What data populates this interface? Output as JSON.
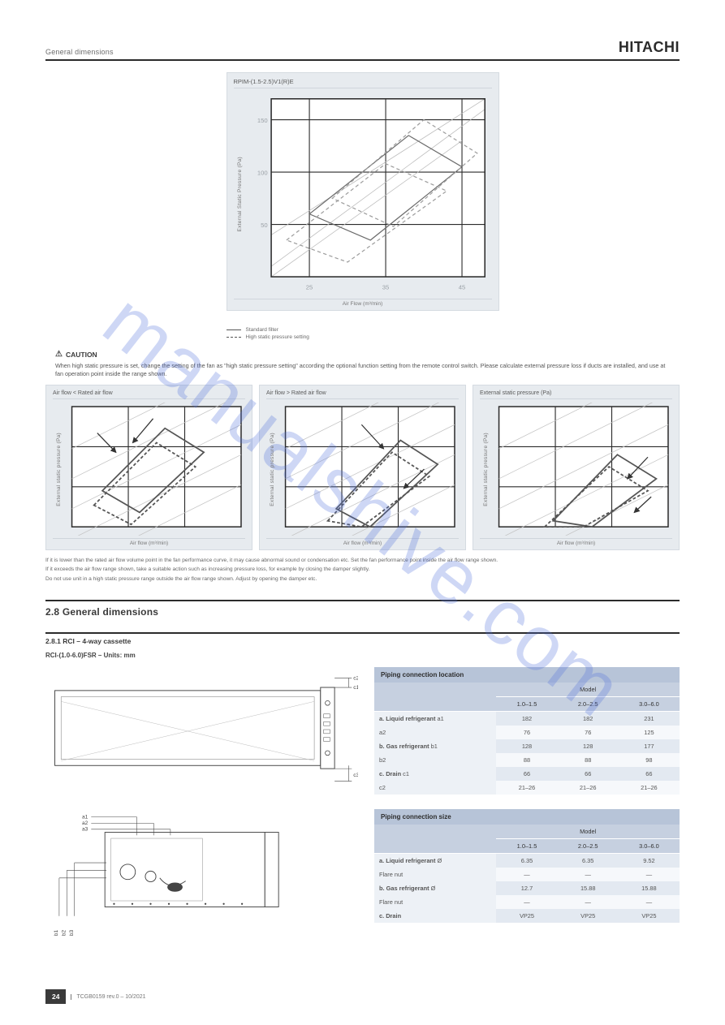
{
  "header": {
    "section_label": "General dimensions",
    "brand": "HITACHI"
  },
  "main_chart": {
    "title": "RPIM-(1.5-2.5)V1(R)E",
    "ylabel": "External Static Pressure (Pa)",
    "xlabel": "Air Flow (m³/min)",
    "x_ticks": [
      "25",
      "35",
      "45"
    ],
    "y_ticks": [
      "50",
      "100",
      "150"
    ],
    "xlim": [
      20,
      48
    ],
    "ylim": [
      0,
      170
    ],
    "styling": {
      "bg": "#e7ebef",
      "plot_bg": "#ffffff",
      "grid": "#2b2b2b",
      "line_solid": "#6a6a6a",
      "line_dashed": "#9c9c9c",
      "tick_fontsize": 7,
      "tick_color": "#9aa0a6",
      "polygons": [
        {
          "pts": [
            [
              25,
              60
            ],
            [
              38,
              135
            ],
            [
              45,
              105
            ],
            [
              33,
              35
            ]
          ],
          "stroke": "#6a6a6a",
          "dash": false
        },
        {
          "pts": [
            [
              22,
              35
            ],
            [
              35,
              108
            ],
            [
              43,
              82
            ],
            [
              30,
              14
            ]
          ],
          "stroke": "#9c9c9c",
          "dash": true
        },
        {
          "pts": [
            [
              28,
              75
            ],
            [
              40,
              150
            ],
            [
              47,
              118
            ],
            [
              36,
              48
            ]
          ],
          "stroke": "#9c9c9c",
          "dash": true
        }
      ],
      "diag_lines": [
        {
          "p1": [
            20,
            10
          ],
          "p2": [
            48,
            160
          ],
          "stroke": "#bcbcbc"
        },
        {
          "p1": [
            20,
            40
          ],
          "p2": [
            48,
            170
          ],
          "stroke": "#bcbcbc"
        },
        {
          "p1": [
            20,
            0
          ],
          "p2": [
            45,
            130
          ],
          "stroke": "#bcbcbc"
        }
      ]
    },
    "legend": [
      {
        "swatch": "solid",
        "label": "Standard filter"
      },
      {
        "swatch": "dashed",
        "label": "High static pressure setting"
      }
    ]
  },
  "caution": {
    "heading": "CAUTION",
    "text": "When high static pressure is set, change the setting of the fan as \"high static pressure setting\" according the optional function setting from the remote control switch. Please calculate external pressure loss if ducts are installed, and use at fan operation point inside the range shown."
  },
  "three": [
    {
      "title": "Air flow < Rated air flow",
      "ylabel": "External static pressure (Pa)",
      "xlabel": "Air flow (m³/min)",
      "arrows": [
        [
          0.15,
          0.78,
          0.26,
          0.62
        ],
        [
          0.48,
          0.9,
          0.36,
          0.7
        ]
      ],
      "polygons": [
        {
          "pts": [
            [
              0.18,
              0.3
            ],
            [
              0.55,
              0.82
            ],
            [
              0.78,
              0.62
            ],
            [
              0.4,
              0.12
            ]
          ],
          "dash": false
        },
        {
          "pts": [
            [
              0.13,
              0.18
            ],
            [
              0.5,
              0.7
            ],
            [
              0.73,
              0.5
            ],
            [
              0.35,
              0.02
            ]
          ],
          "dash": true
        }
      ]
    },
    {
      "title": "Air flow > Rated air flow",
      "ylabel": "External static pressure (Pa)",
      "xlabel": "Air flow (m³/min)",
      "arrows": [
        [
          0.45,
          0.85,
          0.58,
          0.65
        ],
        [
          0.82,
          0.48,
          0.7,
          0.32
        ]
      ],
      "polygons": [
        {
          "pts": [
            [
              0.3,
              0.15
            ],
            [
              0.68,
              0.72
            ],
            [
              0.9,
              0.52
            ],
            [
              0.5,
              0.0
            ]
          ],
          "dash": false
        },
        {
          "pts": [
            [
              0.25,
              0.05
            ],
            [
              0.63,
              0.62
            ],
            [
              0.85,
              0.42
            ],
            [
              0.45,
              -0.07
            ]
          ],
          "dash": true
        }
      ]
    },
    {
      "title": "External static pressure (Pa)",
      "ylabel": "External static pressure (Pa)",
      "xlabel": "Air flow (m³/min)",
      "arrows": [
        [
          0.88,
          0.58,
          0.76,
          0.4
        ],
        [
          0.9,
          0.25,
          0.8,
          0.12
        ]
      ],
      "polygons": [
        {
          "pts": [
            [
              0.32,
              0.05
            ],
            [
              0.7,
              0.6
            ],
            [
              0.93,
              0.4
            ],
            [
              0.55,
              -0.08
            ]
          ],
          "dash": false
        },
        {
          "pts": [
            [
              0.27,
              -0.03
            ],
            [
              0.65,
              0.5
            ],
            [
              0.88,
              0.3
            ],
            [
              0.5,
              -0.15
            ]
          ],
          "dash": true
        }
      ]
    }
  ],
  "three_notes": [
    "If it is lower than the rated air flow volume point in the fan performance curve, it may cause abnormal sound or condensation etc. Set the fan performance point inside the air flow range shown.",
    "If it exceeds the air flow range shown, take a suitable action such as increasing pressure loss, for example by closing the damper slightly.",
    "Do not use unit in a high static pressure range outside the air flow range shown. Adjust by opening the damper etc."
  ],
  "dims_section": {
    "heading": "2.8 General dimensions",
    "sub": "2.8.1 RCI – 4-way cassette",
    "model_line": "RCI-(1.0-6.0)FSR – Units: mm",
    "callouts": [
      "a1",
      "a2",
      "a3",
      "b1",
      "b2",
      "b3",
      "c1",
      "c2",
      "c3"
    ]
  },
  "tables": {
    "upper": {
      "title": "Piping connection location",
      "model_header": "Model",
      "models": [
        "1.0–1.5",
        "2.0–2.5",
        "3.0–6.0"
      ],
      "rows": [
        {
          "label": "a. Liquid refrigerant",
          "sub": "a1",
          "vals": [
            "182",
            "182",
            "231"
          ],
          "alt": true
        },
        {
          "label": "",
          "sub": "a2",
          "vals": [
            "76",
            "76",
            "125"
          ]
        },
        {
          "label": "b. Gas refrigerant",
          "sub": "b1",
          "vals": [
            "128",
            "128",
            "177"
          ],
          "alt": true
        },
        {
          "label": "",
          "sub": "b2",
          "vals": [
            "88",
            "88",
            "98"
          ]
        },
        {
          "label": "c. Drain",
          "sub": "c1",
          "vals": [
            "66",
            "66",
            "66"
          ],
          "alt": true
        },
        {
          "label": "",
          "sub": "c2",
          "vals": [
            "21–26",
            "21–26",
            "21–26"
          ]
        }
      ]
    },
    "lower": {
      "title": "Piping connection size",
      "model_header": "Model",
      "models": [
        "1.0–1.5",
        "2.0–2.5",
        "3.0–6.0"
      ],
      "rows": [
        {
          "label": "a. Liquid refrigerant",
          "sub": "Ø",
          "vals": [
            "6.35",
            "6.35",
            "9.52"
          ],
          "alt": true
        },
        {
          "label": "",
          "sub": "Flare nut",
          "vals": [
            "—",
            "—",
            "—"
          ]
        },
        {
          "label": "b. Gas refrigerant",
          "sub": "Ø",
          "vals": [
            "12.7",
            "15.88",
            "15.88"
          ],
          "alt": true
        },
        {
          "label": "",
          "sub": "Flare nut",
          "vals": [
            "—",
            "—",
            "—"
          ]
        },
        {
          "label": "c. Drain",
          "sub": "",
          "vals": [
            "VP25",
            "VP25",
            "VP25"
          ],
          "alt": true
        }
      ]
    }
  },
  "footer": {
    "page": "24",
    "doc": "TCGB0159 rev.0 – 10/2021"
  },
  "watermark": "manualshive.com"
}
